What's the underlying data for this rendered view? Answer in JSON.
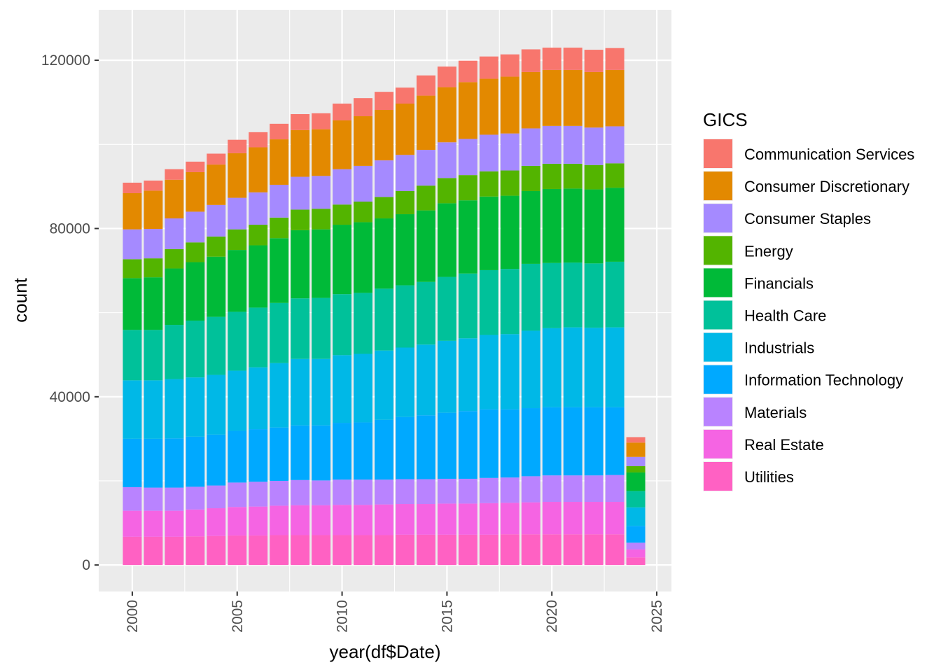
{
  "chart_data": {
    "type": "bar",
    "stacked": true,
    "xlabel": "year(df$Date)",
    "ylabel": "count",
    "x_ticks": [
      2000,
      2005,
      2010,
      2015,
      2020,
      2025
    ],
    "x_tick_labels": [
      "2000",
      "2005",
      "2010",
      "2015",
      "2020",
      "2025"
    ],
    "y_ticks": [
      0,
      40000,
      80000,
      120000
    ],
    "y_tick_labels": [
      "0",
      "40000",
      "80000",
      "120000"
    ],
    "xlim": [
      1998.4,
      2025.7
    ],
    "ylim": [
      -6300,
      132000
    ],
    "grid": true,
    "legend": {
      "title": "GICS",
      "position": "right"
    },
    "categories": [
      2000,
      2001,
      2002,
      2003,
      2004,
      2005,
      2006,
      2007,
      2008,
      2009,
      2010,
      2011,
      2012,
      2013,
      2014,
      2015,
      2016,
      2017,
      2018,
      2019,
      2020,
      2021,
      2022,
      2023,
      2024
    ],
    "series": [
      {
        "name": "Utilities",
        "color": "#FF61C3",
        "values": [
          6700,
          6700,
          6700,
          6800,
          6900,
          7000,
          7000,
          7100,
          7100,
          7100,
          7100,
          7100,
          7100,
          7200,
          7200,
          7200,
          7200,
          7200,
          7300,
          7300,
          7300,
          7300,
          7300,
          7300,
          1800
        ]
      },
      {
        "name": "Real Estate",
        "color": "#F564E3",
        "values": [
          6200,
          6200,
          6200,
          6400,
          6600,
          6800,
          6900,
          7000,
          7100,
          7100,
          7200,
          7200,
          7300,
          7300,
          7300,
          7400,
          7400,
          7500,
          7500,
          7600,
          7700,
          7700,
          7700,
          7700,
          1900
        ]
      },
      {
        "name": "Materials",
        "color": "#B983FF",
        "values": [
          5600,
          5500,
          5500,
          5400,
          5400,
          5800,
          5900,
          5900,
          6000,
          5900,
          6000,
          6000,
          5900,
          5900,
          5900,
          5900,
          5900,
          6000,
          6000,
          6200,
          6300,
          6300,
          6300,
          6400,
          1600
        ]
      },
      {
        "name": "Information Technology",
        "color": "#00A9FF",
        "values": [
          11500,
          11600,
          11700,
          11900,
          12100,
          12300,
          12500,
          12700,
          13000,
          13100,
          13500,
          13600,
          14200,
          14800,
          15200,
          15700,
          16100,
          16300,
          16200,
          16200,
          16200,
          16200,
          16200,
          16100,
          4000
        ]
      },
      {
        "name": "Industrials",
        "color": "#00B8E7",
        "values": [
          13900,
          13900,
          14100,
          14100,
          14200,
          14300,
          14700,
          15300,
          15800,
          15800,
          16100,
          16300,
          16500,
          16500,
          16800,
          17100,
          17300,
          17700,
          17900,
          18400,
          18800,
          19000,
          18900,
          19000,
          4400
        ]
      },
      {
        "name": "Health Care",
        "color": "#00C19A",
        "values": [
          12000,
          12000,
          12900,
          13500,
          13800,
          14000,
          14200,
          14300,
          14400,
          14500,
          14500,
          14500,
          14700,
          14800,
          14900,
          15200,
          15400,
          15400,
          15500,
          15900,
          15500,
          15400,
          15300,
          15600,
          3900
        ]
      },
      {
        "name": "Financials",
        "color": "#00BA38",
        "values": [
          12300,
          12500,
          13400,
          13900,
          14300,
          14700,
          14800,
          15400,
          16200,
          16300,
          16500,
          16800,
          16700,
          16900,
          17000,
          17500,
          17400,
          17500,
          17400,
          17300,
          17600,
          17600,
          17600,
          17600,
          4400
        ]
      },
      {
        "name": "Energy",
        "color": "#53B400",
        "values": [
          4500,
          4500,
          4600,
          4700,
          4800,
          4900,
          4900,
          4900,
          4900,
          4900,
          4800,
          4900,
          5100,
          5500,
          5900,
          6000,
          6000,
          6000,
          6000,
          6000,
          6000,
          5900,
          5800,
          5800,
          1500
        ]
      },
      {
        "name": "Consumer Staples",
        "color": "#A58AFF",
        "values": [
          7100,
          7000,
          7300,
          7300,
          7500,
          7500,
          7700,
          7800,
          7800,
          7800,
          8400,
          8500,
          8700,
          8600,
          8500,
          8500,
          8600,
          8700,
          8800,
          8900,
          9000,
          9000,
          8900,
          8800,
          2200
        ]
      },
      {
        "name": "Consumer Discretionary",
        "color": "#E38900",
        "values": [
          8600,
          9100,
          9200,
          9400,
          9600,
          10600,
          10700,
          10800,
          11100,
          11100,
          11600,
          11800,
          12000,
          12200,
          12900,
          13100,
          13500,
          13300,
          13500,
          13400,
          13300,
          13300,
          13200,
          13400,
          3400
        ]
      },
      {
        "name": "Communication Services",
        "color": "#F8766D",
        "values": [
          2500,
          2400,
          2500,
          2500,
          2600,
          3200,
          3600,
          3700,
          3800,
          3800,
          4000,
          4300,
          4300,
          3800,
          4800,
          4900,
          5100,
          5300,
          5300,
          5400,
          5300,
          5300,
          5300,
          5200,
          1300
        ]
      }
    ],
    "legend_order": [
      "Communication Services",
      "Consumer Discretionary",
      "Consumer Staples",
      "Energy",
      "Financials",
      "Health Care",
      "Industrials",
      "Information Technology",
      "Materials",
      "Real Estate",
      "Utilities"
    ]
  }
}
